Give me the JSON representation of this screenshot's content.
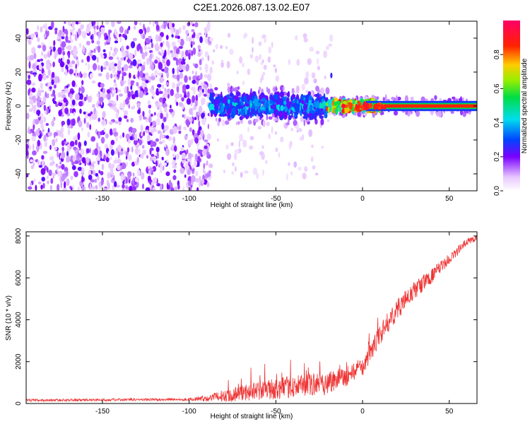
{
  "title": "C2E1.2026.087.13.02.E07",
  "colors": {
    "snr_line": "#ee3333",
    "axis": "#000000"
  },
  "chart_data": [
    {
      "type": "heatmap",
      "xlabel": "Height of straight line (km)",
      "ylabel": "Frequency (Hz)",
      "xlim": [
        -194,
        66
      ],
      "ylim": [
        -50,
        50
      ],
      "xticks": [
        -150,
        -100,
        -50,
        0,
        50
      ],
      "yticks": [
        -40,
        -20,
        0,
        20,
        40
      ],
      "colorbar": {
        "label": "Normalized spectral amplitude",
        "range": [
          0,
          1
        ],
        "ticks": [
          "0.0",
          "0.2",
          "0.4",
          "0.6",
          "0.8"
        ]
      },
      "regions": [
        {
          "x": [
            -194,
            -88
          ],
          "description": "broadband noise, amplitude 0-0.3"
        },
        {
          "x": [
            -88,
            -20
          ],
          "freq_center": 0,
          "freq_halfwidth": 8,
          "amplitude": [
            0.2,
            0.5
          ]
        },
        {
          "x": [
            -20,
            10
          ],
          "freq_center": 0,
          "freq_halfwidth": 3,
          "amplitude": [
            0.4,
            0.9
          ]
        },
        {
          "x": [
            10,
            66
          ],
          "freq_center": 0,
          "freq_halfwidth": 2,
          "amplitude": [
            0.9,
            1.0
          ]
        }
      ],
      "spike": {
        "x": -18,
        "freq": 18
      }
    },
    {
      "type": "line",
      "xlabel": "Height of straight line (km)",
      "ylabel": "SNR (10 * v/v)",
      "xlim": [
        -194,
        66
      ],
      "ylim": [
        0,
        8200
      ],
      "xticks": [
        -150,
        -100,
        -50,
        0,
        50
      ],
      "yticks": [
        0,
        2000,
        4000,
        6000,
        8000
      ],
      "series": [
        {
          "x": [
            -194,
            -100,
            -90,
            -70,
            -50,
            -30,
            -20,
            -10,
            0,
            10,
            20,
            30,
            40,
            50,
            60,
            66
          ],
          "mean": [
            150,
            200,
            250,
            500,
            700,
            900,
            1000,
            1300,
            1700,
            3300,
            4500,
            5400,
            6100,
            6900,
            7700,
            7950
          ],
          "noise_amplitude": [
            60,
            60,
            150,
            400,
            500,
            550,
            600,
            500,
            400,
            500,
            500,
            450,
            350,
            250,
            200,
            150
          ]
        }
      ]
    }
  ]
}
